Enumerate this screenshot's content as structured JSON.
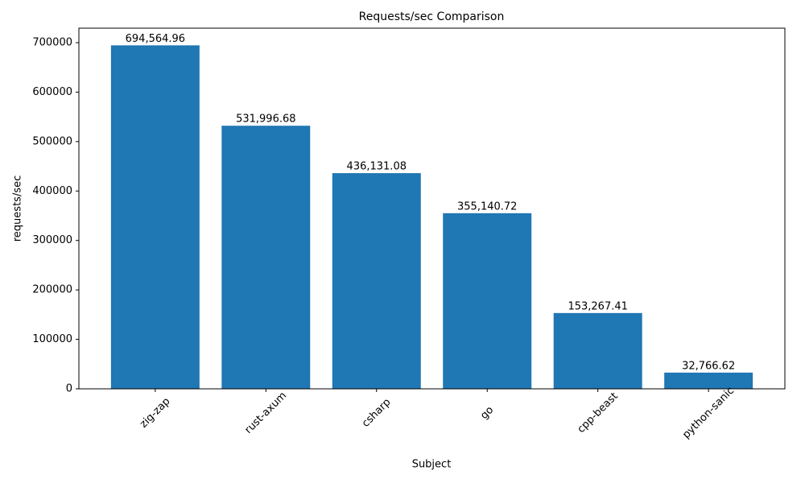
{
  "chart_data": {
    "type": "bar",
    "title": "Requests/sec Comparison",
    "x_label": "Subject",
    "y_label": "requests/sec",
    "categories": [
      "zig-zap",
      "rust-axum",
      "csharp",
      "go",
      "cpp-beast",
      "python-sanic"
    ],
    "values": [
      694564.96,
      531996.68,
      436131.08,
      355140.72,
      153267.41,
      32766.62
    ],
    "value_labels": [
      "694,564.96",
      "531,996.68",
      "436,131.08",
      "355,140.72",
      "153,267.41",
      "32,766.62"
    ],
    "color": "#1f77b4",
    "ylim": [
      0,
      729293
    ],
    "yticks": [
      0,
      100000,
      200000,
      300000,
      400000,
      500000,
      600000,
      700000
    ],
    "grid": false
  }
}
